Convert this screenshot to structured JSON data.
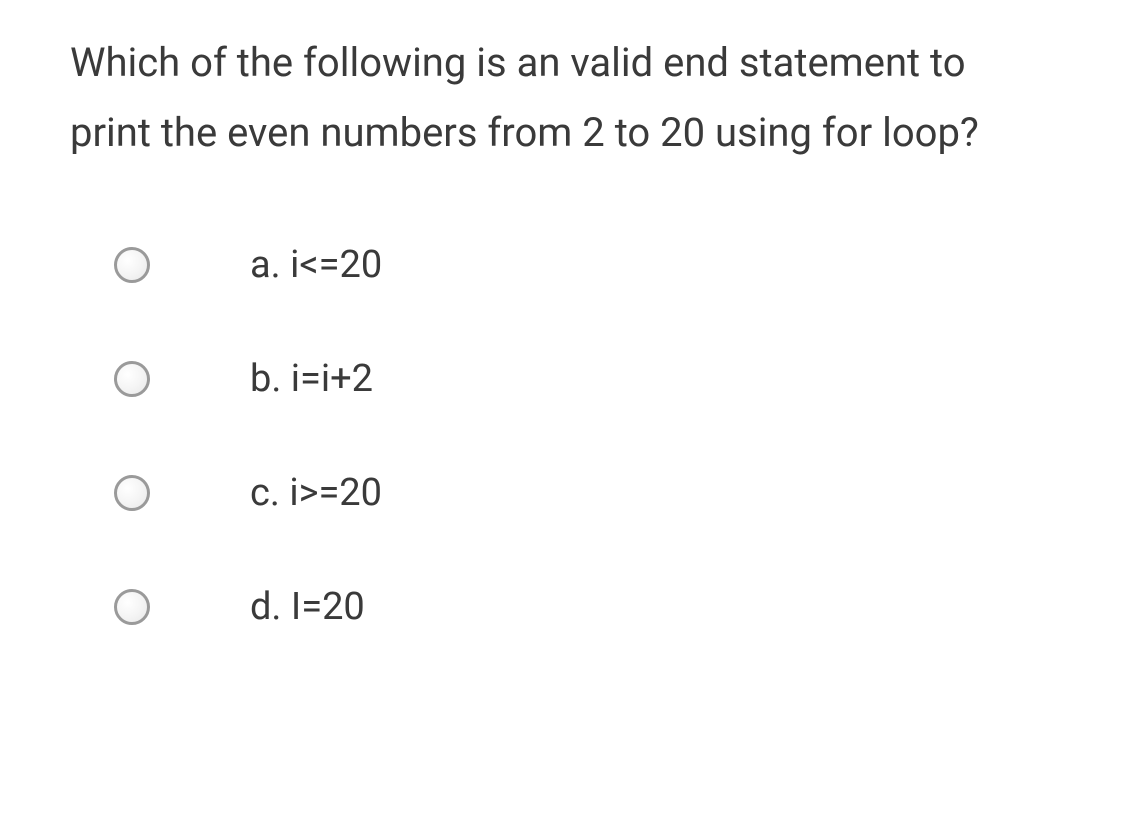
{
  "question": {
    "text": "Which of the following is an valid end statement to print the even numbers from 2 to 20 using for loop?"
  },
  "options": [
    {
      "id": "a",
      "label": "a. i<=20"
    },
    {
      "id": "b",
      "label": "b. i=i+2"
    },
    {
      "id": "c",
      "label": "c. i>=20"
    },
    {
      "id": "d",
      "label": "d. I=20"
    }
  ],
  "styling": {
    "background_color": "#ffffff",
    "text_color": "#3a3a3a",
    "radio_border_color": "#9a9a9a",
    "question_fontsize": 40,
    "option_fontsize": 38,
    "radio_size": 36
  }
}
